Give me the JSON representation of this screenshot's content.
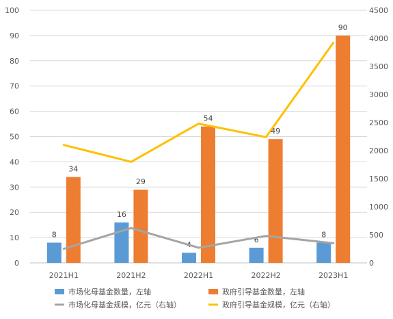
{
  "chart_data": {
    "type": "bar",
    "categories": [
      "2021H1",
      "2021H2",
      "2022H1",
      "2022H2",
      "2023H1"
    ],
    "series": [
      {
        "name": "市场化母基金数量，左轴",
        "type": "bar",
        "axis": "left",
        "color": "#5B9BD5",
        "values": [
          8,
          16,
          4,
          6,
          8
        ]
      },
      {
        "name": "政府引导基金数量，左轴",
        "type": "bar",
        "axis": "left",
        "color": "#ED7D31",
        "values": [
          34,
          29,
          54,
          49,
          90
        ]
      },
      {
        "name": "市场化母基金规模，亿元（右轴）",
        "type": "line",
        "axis": "right",
        "color": "#A5A5A5",
        "values": [
          250,
          620,
          270,
          480,
          350
        ]
      },
      {
        "name": "政府引导基金规模，亿元（右轴）",
        "type": "line",
        "axis": "right",
        "color": "#FFC000",
        "values": [
          2100,
          1800,
          2480,
          2240,
          3920
        ]
      }
    ],
    "ylim_left": [
      0,
      100
    ],
    "ylim_right": [
      0,
      4500
    ],
    "yticks_left": [
      "0",
      "10",
      "20",
      "30",
      "40",
      "50",
      "60",
      "70",
      "80",
      "90",
      "100"
    ],
    "yticks_right": [
      "0",
      "500",
      "1000",
      "1500",
      "2000",
      "2500",
      "3000",
      "3500",
      "4000",
      "4500"
    ],
    "data_labels": {
      "市场化母基金数量，左轴": [
        "8",
        "16",
        "4",
        "6",
        "8"
      ],
      "政府引导基金数量，左轴": [
        "34",
        "29",
        "54",
        "49",
        "90"
      ]
    },
    "grid": true,
    "legend_position": "bottom"
  }
}
